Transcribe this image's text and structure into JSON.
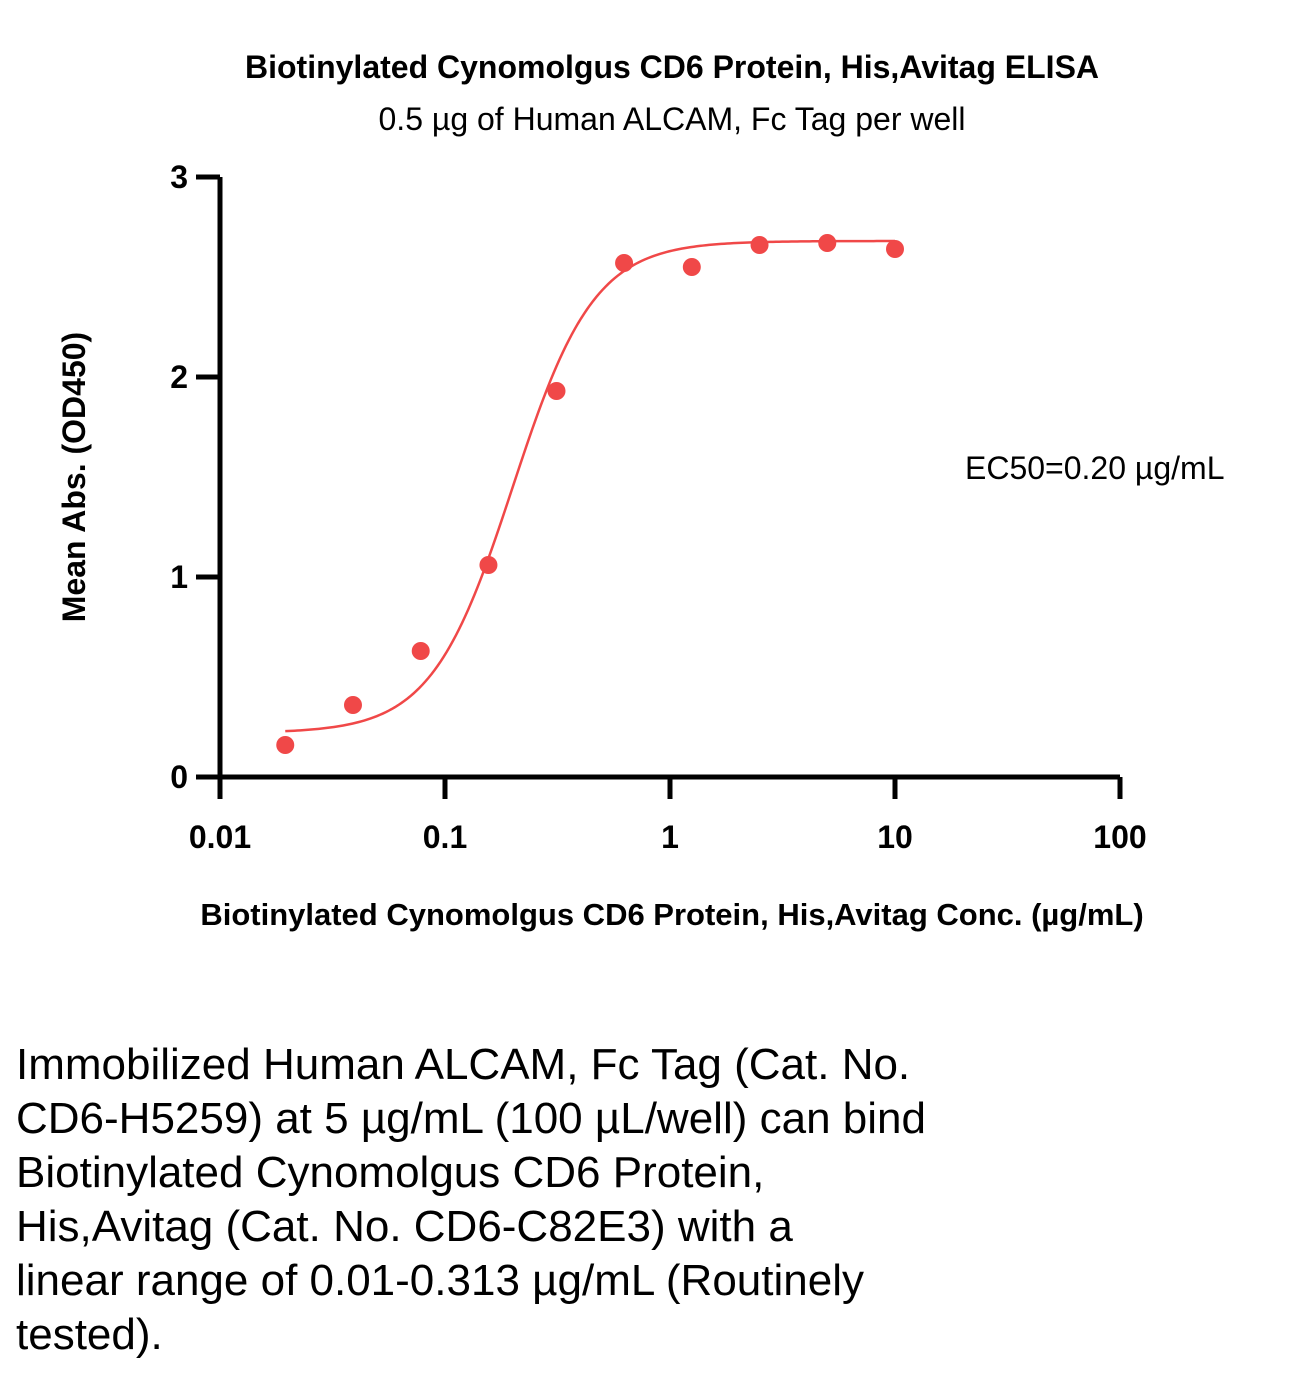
{
  "chart_data": {
    "type": "scatter",
    "title": "Biotinylated Cynomolgus CD6 Protein, His,Avitag ELISA",
    "subtitle": "0.5 µg of Human ALCAM, Fc Tag per well",
    "xlabel": "Biotinylated Cynomolgus CD6 Protein, His,Avitag Conc. (µg/mL)",
    "ylabel": "Mean Abs. (OD450)",
    "xscale": "log",
    "xlim": [
      0.01,
      100
    ],
    "ylim": [
      0,
      3
    ],
    "xticks": [
      "0.01",
      "0.1",
      "1",
      "10",
      "100"
    ],
    "yticks": [
      "0",
      "1",
      "2",
      "3"
    ],
    "grid": false,
    "annotation": "EC50=0.20 µg/mL",
    "color": "#f04848",
    "series": [
      {
        "x": [
          0.0195,
          0.039,
          0.078,
          0.156,
          0.313,
          0.625,
          1.25,
          2.5,
          5,
          10
        ],
        "y": [
          0.16,
          0.36,
          0.63,
          1.06,
          1.93,
          2.57,
          2.55,
          2.66,
          2.67,
          2.64
        ]
      }
    ],
    "fit": {
      "type": "4PL",
      "bottom": 0.22,
      "top": 2.68,
      "ec50": 0.2,
      "hill": 2.4,
      "xrange": [
        0.0195,
        10
      ]
    }
  },
  "caption": [
    "Immobilized Human ALCAM, Fc Tag (Cat. No.",
    "CD6-H5259) at 5 µg/mL (100 µL/well) can bind",
    "Biotinylated Cynomolgus CD6 Protein,",
    "His,Avitag (Cat. No. CD6-C82E3) with a",
    "linear range of 0.01-0.313 µg/mL (Routinely",
    "tested)."
  ]
}
